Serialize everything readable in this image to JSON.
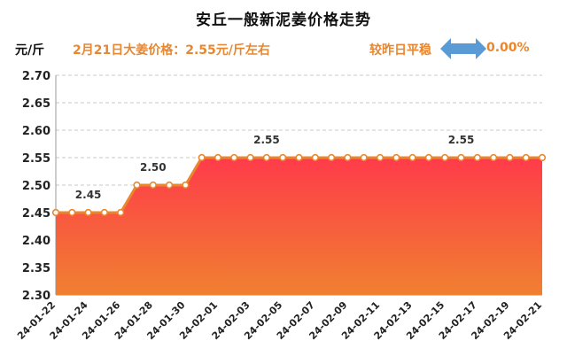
{
  "header": {
    "title": "安丘一般新泥姜价格走势",
    "unit": "元/斤",
    "price_note": "2月21日大姜价格：2.55元/斤左右",
    "compare_label": "较昨日平稳",
    "change_value": "0.00%",
    "arrow_icon": "double-arrow-icon",
    "arrow_color": "#5b9bd5",
    "accent_color": "#e8872f"
  },
  "chart_data": {
    "type": "area",
    "title": "安丘一般新泥姜价格走势",
    "ylabel": "元/斤",
    "ylim": [
      2.3,
      2.7
    ],
    "yticks": [
      "2.30",
      "2.35",
      "2.40",
      "2.45",
      "2.50",
      "2.55",
      "2.60",
      "2.65",
      "2.70"
    ],
    "grid": true,
    "x": [
      "24-01-22",
      "24-01-23",
      "24-01-24",
      "24-01-25",
      "24-01-26",
      "24-01-27",
      "24-01-28",
      "24-01-29",
      "24-01-30",
      "24-01-31",
      "24-02-01",
      "24-02-02",
      "24-02-03",
      "24-02-04",
      "24-02-05",
      "24-02-06",
      "24-02-07",
      "24-02-08",
      "24-02-09",
      "24-02-10",
      "24-02-11",
      "24-02-12",
      "24-02-13",
      "24-02-14",
      "24-02-15",
      "24-02-16",
      "24-02-17",
      "24-02-18",
      "24-02-19",
      "24-02-20",
      "24-02-21"
    ],
    "xticks": [
      "24-01-22",
      "24-01-24",
      "24-01-26",
      "24-01-28",
      "24-01-30",
      "24-02-01",
      "24-02-03",
      "24-02-05",
      "24-02-07",
      "24-02-09",
      "24-02-11",
      "24-02-13",
      "24-02-15",
      "24-02-17",
      "24-02-19",
      "24-02-21"
    ],
    "values": [
      2.45,
      2.45,
      2.45,
      2.45,
      2.45,
      2.5,
      2.5,
      2.5,
      2.5,
      2.55,
      2.55,
      2.55,
      2.55,
      2.55,
      2.55,
      2.55,
      2.55,
      2.55,
      2.55,
      2.55,
      2.55,
      2.55,
      2.55,
      2.55,
      2.55,
      2.55,
      2.55,
      2.55,
      2.55,
      2.55,
      2.55
    ],
    "data_labels": [
      {
        "index": 2,
        "text": "2.45"
      },
      {
        "index": 6,
        "text": "2.50"
      },
      {
        "index": 13,
        "text": "2.55"
      },
      {
        "index": 25,
        "text": "2.55"
      }
    ],
    "line_color": "#e8872f",
    "fill_top_color": "#ff3b4a",
    "fill_bottom_color": "#f08030"
  }
}
